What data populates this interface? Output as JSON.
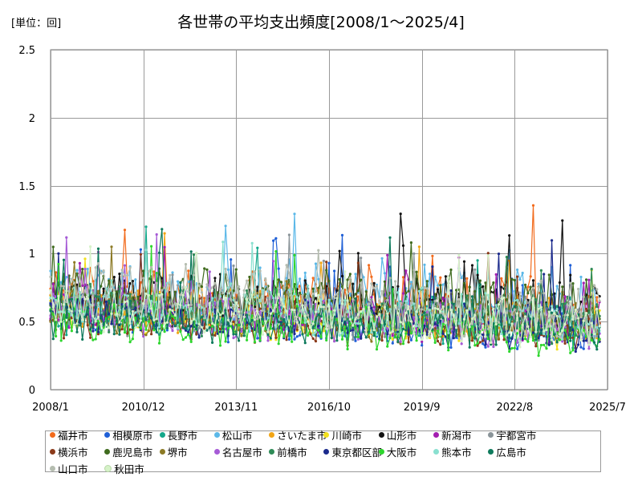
{
  "unit_label": "[単位：回]",
  "title": "各世帯の平均支出頻度[2008/1〜2025/4]",
  "chart_data": {
    "type": "line",
    "ylim": [
      0,
      2.5
    ],
    "yticks": [
      "0",
      "0.5",
      "1",
      "1.5",
      "2",
      "2.5"
    ],
    "xticks": [
      "2008/1",
      "2010/12",
      "2013/11",
      "2016/10",
      "2019/9",
      "2022/8",
      "2025/7"
    ],
    "x_start": "2008/1",
    "x_end": "2025/7",
    "x_last_data": "2025/4",
    "grid": true,
    "legend_position": "bottom",
    "series": [
      {
        "name": "福井市",
        "color": "#F26B1D",
        "base": 0.7,
        "amp": 0.17,
        "trend": -0.1
      },
      {
        "name": "相模原市",
        "color": "#1F5FD6",
        "base": 0.55,
        "amp": 0.12,
        "trend": -0.12
      },
      {
        "name": "長野市",
        "color": "#14A88B",
        "base": 0.58,
        "amp": 0.13,
        "trend": -0.1
      },
      {
        "name": "松山市",
        "color": "#5BB8E8",
        "base": 0.72,
        "amp": 0.22,
        "trend": -0.1
      },
      {
        "name": "さいたま市",
        "color": "#F2A516",
        "base": 0.62,
        "amp": 0.14,
        "trend": -0.12
      },
      {
        "name": "川崎市",
        "color": "#F2E01D",
        "base": 0.58,
        "amp": 0.13,
        "trend": -0.12
      },
      {
        "name": "山形市",
        "color": "#111111",
        "base": 0.68,
        "amp": 0.17,
        "trend": -0.05
      },
      {
        "name": "新潟市",
        "color": "#A31FB0",
        "base": 0.6,
        "amp": 0.14,
        "trend": -0.1
      },
      {
        "name": "宇都宮市",
        "color": "#8A9499",
        "base": 0.58,
        "amp": 0.13,
        "trend": -0.08
      },
      {
        "name": "横浜市",
        "color": "#8B3A1A",
        "base": 0.55,
        "amp": 0.13,
        "trend": -0.1
      },
      {
        "name": "鹿児島市",
        "color": "#3F6B1E",
        "base": 0.72,
        "amp": 0.2,
        "trend": -0.1
      },
      {
        "name": "堺市",
        "color": "#8C7A25",
        "base": 0.58,
        "amp": 0.13,
        "trend": -0.1
      },
      {
        "name": "名古屋市",
        "color": "#A65BD6",
        "base": 0.58,
        "amp": 0.13,
        "trend": -0.12
      },
      {
        "name": "前橋市",
        "color": "#2E8B57",
        "base": 0.6,
        "amp": 0.14,
        "trend": -0.1
      },
      {
        "name": "東京都区部",
        "color": "#1B2A8C",
        "base": 0.56,
        "amp": 0.12,
        "trend": -0.12
      },
      {
        "name": "大阪市",
        "color": "#2ED62E",
        "base": 0.52,
        "amp": 0.12,
        "trend": -0.12
      },
      {
        "name": "熊本市",
        "color": "#8AE0D0",
        "base": 0.62,
        "amp": 0.15,
        "trend": -0.1
      },
      {
        "name": "広島市",
        "color": "#0E7A5C",
        "base": 0.55,
        "amp": 0.13,
        "trend": -0.1
      },
      {
        "name": "山口市",
        "color": "#B5BDB0",
        "base": 0.72,
        "amp": 0.2,
        "trend": -0.12
      },
      {
        "name": "秋田市",
        "color": "#D6F2C8",
        "base": 0.6,
        "amp": 0.14,
        "trend": -0.12
      }
    ]
  }
}
